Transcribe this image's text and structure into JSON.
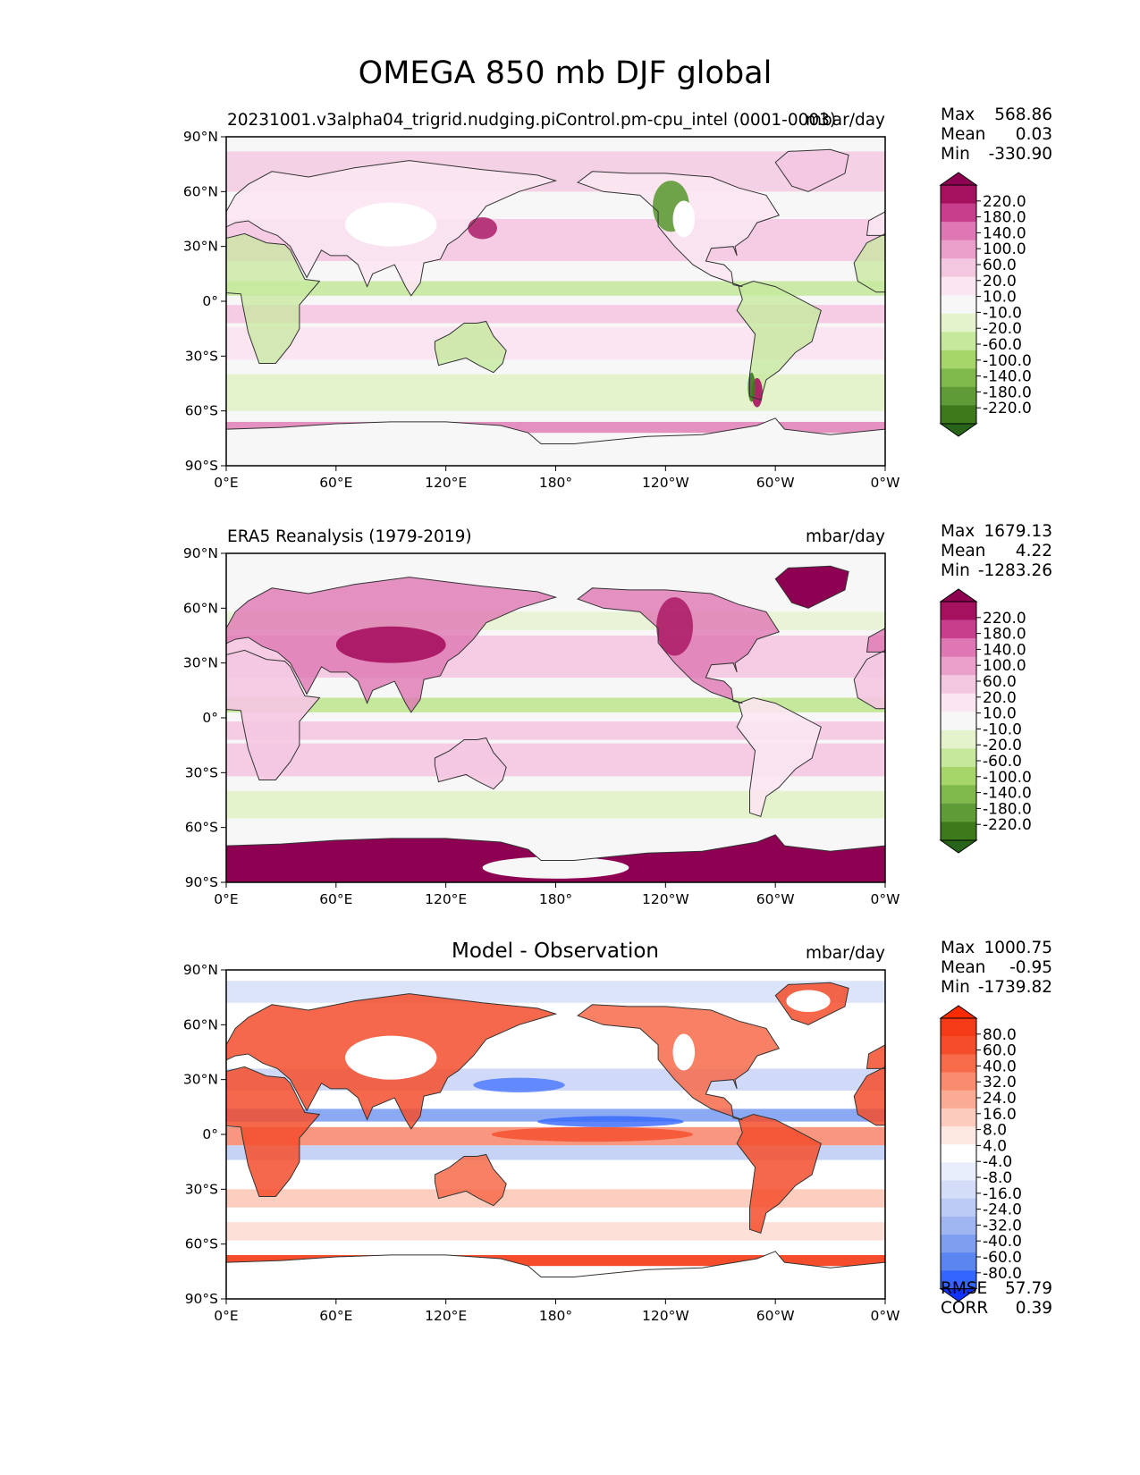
{
  "figure_title": "OMEGA 850 mb DJF global",
  "colors": {
    "pg_levels": [
      "#276419",
      "#3d7a1c",
      "#5f9b36",
      "#7fb94c",
      "#a6d66a",
      "#c6e89d",
      "#e4f3cc",
      "#f7f7f7",
      "#fbe5f1",
      "#f4c7e1",
      "#eaa0cb",
      "#de77b3",
      "#c63e8c",
      "#a6115f",
      "#8e0152"
    ],
    "diff_levels": [
      "#1133ff",
      "#3366ff",
      "#5b85f0",
      "#7f9ef0",
      "#a0b6f2",
      "#bccbf5",
      "#d3ddf8",
      "#e8eefb",
      "#ffffff",
      "#fde8e2",
      "#fccbbd",
      "#fbab95",
      "#f98c6f",
      "#f76a4a",
      "#f54d2b",
      "#f43a16",
      "#ff2a00"
    ],
    "coast": "#333333",
    "ocean_base": "#f7f7f7"
  },
  "chart_data": [
    {
      "type": "heatmap",
      "title": "20231001.v3alpha04_trigrid.nudging.piControl.pm-cpu_intel (0001-0003)",
      "units": "mbar/day",
      "stats": {
        "max": "568.86",
        "mean": "0.03",
        "min": "-330.90"
      },
      "stat_labels": [
        "Max",
        "Mean",
        "Min"
      ],
      "colorbar_ticks": [
        "220.0",
        "180.0",
        "140.0",
        "100.0",
        "60.0",
        "20.0",
        "10.0",
        "-10.0",
        "-20.0",
        "-60.0",
        "-100.0",
        "-140.0",
        "-180.0",
        "-220.0"
      ],
      "xticks": [
        "0°E",
        "60°E",
        "120°E",
        "180°",
        "120°W",
        "60°W",
        "0°W"
      ],
      "yticks": [
        "90°N",
        "60°N",
        "30°N",
        "0°",
        "30°S",
        "60°S",
        "90°S"
      ],
      "xlim": [
        0,
        360
      ],
      "ylim": [
        -90,
        90
      ]
    },
    {
      "type": "heatmap",
      "title": "ERA5 Reanalysis (1979-2019)",
      "units": "mbar/day",
      "stats": {
        "max": "1679.13",
        "mean": "4.22",
        "min": "-1283.26"
      },
      "stat_labels": [
        "Max",
        "Mean",
        "Min"
      ],
      "colorbar_ticks": [
        "220.0",
        "180.0",
        "140.0",
        "100.0",
        "60.0",
        "20.0",
        "10.0",
        "-10.0",
        "-20.0",
        "-60.0",
        "-100.0",
        "-140.0",
        "-180.0",
        "-220.0"
      ],
      "xticks": [
        "0°E",
        "60°E",
        "120°E",
        "180°",
        "120°W",
        "60°W",
        "0°W"
      ],
      "yticks": [
        "90°N",
        "60°N",
        "30°N",
        "0°",
        "30°S",
        "60°S",
        "90°S"
      ],
      "xlim": [
        0,
        360
      ],
      "ylim": [
        -90,
        90
      ]
    },
    {
      "type": "heatmap",
      "title": "Model - Observation",
      "units": "mbar/day",
      "stats": {
        "max": "1000.75",
        "mean": "-0.95",
        "min": "-1739.82"
      },
      "stat_labels": [
        "Max",
        "Mean",
        "Min"
      ],
      "colorbar_ticks": [
        "80.0",
        "60.0",
        "40.0",
        "32.0",
        "24.0",
        "16.0",
        "8.0",
        "4.0",
        "-4.0",
        "-8.0",
        "-16.0",
        "-24.0",
        "-32.0",
        "-40.0",
        "-60.0",
        "-80.0"
      ],
      "xticks": [
        "0°E",
        "60°E",
        "120°E",
        "180°",
        "120°W",
        "60°W",
        "0°W"
      ],
      "yticks": [
        "90°N",
        "60°N",
        "30°N",
        "0°",
        "30°S",
        "60°S",
        "90°S"
      ],
      "xlim": [
        0,
        360
      ],
      "ylim": [
        -90,
        90
      ],
      "metrics": {
        "rmse_label": "RMSE",
        "rmse": "57.79",
        "corr_label": "CORR",
        "corr": "0.39"
      }
    }
  ]
}
